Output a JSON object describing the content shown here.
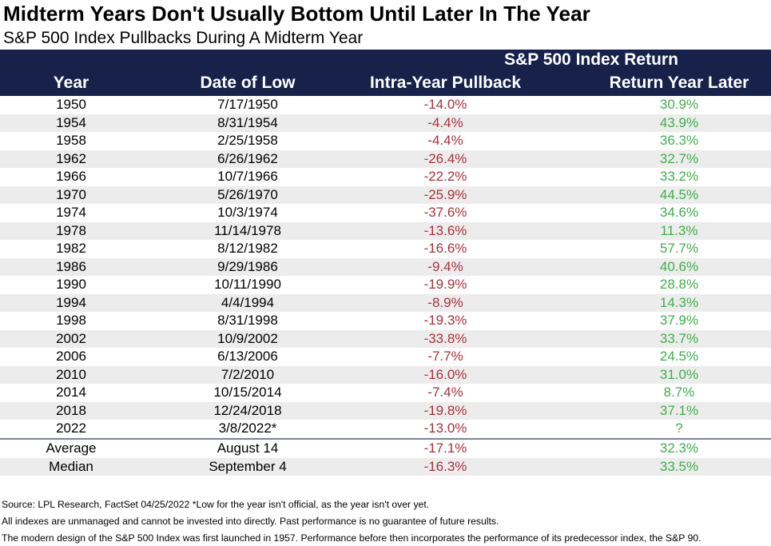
{
  "title": "Midterm Years Don't Usually Bottom Until Later In The Year",
  "subtitle": "S&P 500 Index Pullbacks During A Midterm Year",
  "chart_data": {
    "type": "table",
    "group_header": "S&P 500 Index Return",
    "columns": [
      "Year",
      "Date of Low",
      "Intra-Year Pullback",
      "Return Year Later"
    ],
    "rows": [
      [
        "1950",
        "7/17/1950",
        "-14.0%",
        "30.9%"
      ],
      [
        "1954",
        "8/31/1954",
        "-4.4%",
        "43.9%"
      ],
      [
        "1958",
        "2/25/1958",
        "-4.4%",
        "36.3%"
      ],
      [
        "1962",
        "6/26/1962",
        "-26.4%",
        "32.7%"
      ],
      [
        "1966",
        "10/7/1966",
        "-22.2%",
        "33.2%"
      ],
      [
        "1970",
        "5/26/1970",
        "-25.9%",
        "44.5%"
      ],
      [
        "1974",
        "10/3/1974",
        "-37.6%",
        "34.6%"
      ],
      [
        "1978",
        "11/14/1978",
        "-13.6%",
        "11.3%"
      ],
      [
        "1982",
        "8/12/1982",
        "-16.6%",
        "57.7%"
      ],
      [
        "1986",
        "9/29/1986",
        "-9.4%",
        "40.6%"
      ],
      [
        "1990",
        "10/11/1990",
        "-19.9%",
        "28.8%"
      ],
      [
        "1994",
        "4/4/1994",
        "-8.9%",
        "14.3%"
      ],
      [
        "1998",
        "8/31/1998",
        "-19.3%",
        "37.9%"
      ],
      [
        "2002",
        "10/9/2002",
        "-33.8%",
        "33.7%"
      ],
      [
        "2006",
        "6/13/2006",
        "-7.7%",
        "24.5%"
      ],
      [
        "2010",
        "7/2/2010",
        "-16.0%",
        "31.0%"
      ],
      [
        "2014",
        "10/15/2014",
        "-7.4%",
        "8.7%"
      ],
      [
        "2018",
        "12/24/2018",
        "-19.8%",
        "37.1%"
      ],
      [
        "2022",
        "3/8/2022*",
        "-13.0%",
        "?"
      ]
    ],
    "summary": [
      [
        "Average",
        "August 14",
        "-17.1%",
        "32.3%"
      ],
      [
        "Median",
        "September 4",
        "-16.3%",
        "33.5%"
      ]
    ]
  },
  "colors": {
    "header_bg": "#17214a",
    "negative": "#a8323a",
    "positive": "#3fae4a",
    "row_shade": "#ececec"
  },
  "footnotes": [
    "Source: LPL Research, FactSet 04/25/2022   *Low for the year isn't official, as the year isn't over yet.",
    "All indexes are unmanaged and cannot be invested into directly. Past performance is no guarantee of future results.",
    "The modern design of the S&P 500 Index was first launched in 1957. Performance before then incorporates the performance of its predecessor index, the S&P 90."
  ]
}
